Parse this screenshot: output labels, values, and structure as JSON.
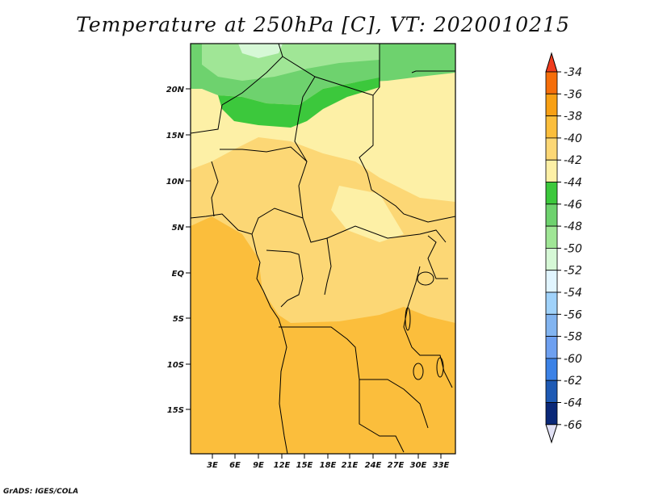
{
  "title": "Temperature at 250hPa [C], VT: 2020010215",
  "credit": "GrADS: IGES/COLA",
  "lat_labels": [
    "20N",
    "15N",
    "10N",
    "5N",
    "EQ",
    "5S",
    "10S",
    "15S"
  ],
  "lon_labels": [
    "3E",
    "6E",
    "9E",
    "12E",
    "15E",
    "18E",
    "21E",
    "24E",
    "27E",
    "30E",
    "33E"
  ],
  "colorbar": {
    "levels": [
      "-34",
      "-36",
      "-38",
      "-40",
      "-42",
      "-44",
      "-46",
      "-48",
      "-50",
      "-52",
      "-54",
      "-56",
      "-58",
      "-60",
      "-62",
      "-64",
      "-66"
    ],
    "colors": [
      "#f03c1e",
      "#f56e0a",
      "#f8a014",
      "#fbbe3c",
      "#fcd775",
      "#fdf0a6",
      "#3cc83c",
      "#6ed26e",
      "#a0e696",
      "#d6f8d6",
      "#e1f5ff",
      "#a0d2fa",
      "#82b4f0",
      "#6ea0f0",
      "#3c82e6",
      "#1e5ab4",
      "#0a2878",
      "#e1e1f5"
    ]
  },
  "legend": {
    "temperature_field_name": "temperature-field"
  }
}
